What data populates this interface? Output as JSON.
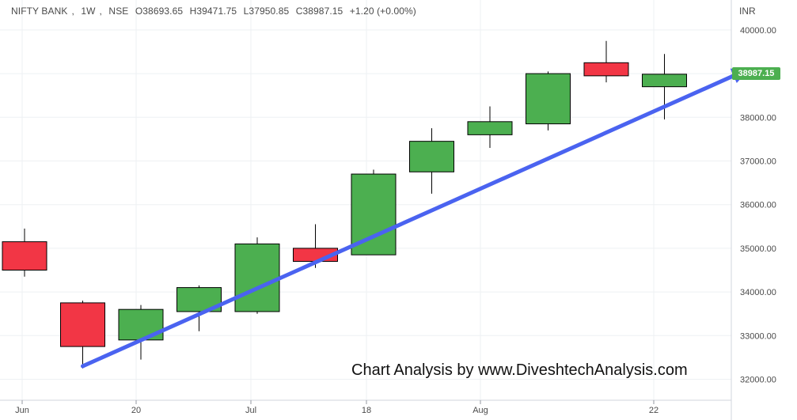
{
  "header": {
    "symbol": "NIFTY BANK",
    "interval": "1W",
    "exchange": "NSE",
    "open": "O38693.65",
    "high": "H39471.75",
    "low": "L37950.85",
    "close": "C38987.15",
    "change": "+1.20 (+0.00%)"
  },
  "currency": "INR",
  "last_price": "38987.15",
  "watermark": "Chart Analysis by www.DiveshtechAnalysis.com",
  "colors": {
    "up": "#4caf50",
    "down": "#f23645",
    "trendline": "#4a63f0",
    "grid": "#eef0f3",
    "axis_text": "#4a4a4a"
  },
  "chart_data": {
    "type": "candlestick",
    "y_axis": {
      "ticks": [
        32000,
        33000,
        34000,
        35000,
        36000,
        37000,
        38000,
        39000,
        40000
      ],
      "tick_labels": [
        "32000.00",
        "33000.00",
        "34000.00",
        "35000.00",
        "36000.00",
        "37000.00",
        "38000.00",
        "39000.00",
        "40000.00"
      ],
      "ylim": [
        31700,
        40500
      ],
      "position": "right"
    },
    "x_axis": {
      "tick_labels": [
        "Jun",
        "20",
        "Jul",
        "18",
        "Aug",
        "22"
      ]
    },
    "candles": [
      {
        "open": 35150,
        "high": 35450,
        "low": 34350,
        "close": 34500
      },
      {
        "open": 33750,
        "high": 33800,
        "low": 32250,
        "close": 32750
      },
      {
        "open": 32900,
        "high": 33700,
        "low": 32450,
        "close": 33600
      },
      {
        "open": 33550,
        "high": 34150,
        "low": 33100,
        "close": 34100
      },
      {
        "open": 33550,
        "high": 35250,
        "low": 33500,
        "close": 35100
      },
      {
        "open": 35000,
        "high": 35550,
        "low": 34550,
        "close": 34700
      },
      {
        "open": 34850,
        "high": 36800,
        "low": 34850,
        "close": 36700
      },
      {
        "open": 36750,
        "high": 37750,
        "low": 36250,
        "close": 37450
      },
      {
        "open": 37600,
        "high": 38250,
        "low": 37300,
        "close": 37900
      },
      {
        "open": 37850,
        "high": 39050,
        "low": 37700,
        "close": 39000
      },
      {
        "open": 39250,
        "high": 39750,
        "low": 38800,
        "close": 38950
      },
      {
        "open": 38700,
        "high": 39450,
        "low": 37950,
        "close": 38987.15
      }
    ],
    "trendline": {
      "start": [
        1,
        32300
      ],
      "end": [
        12.45,
        39100
      ]
    },
    "grid": true
  }
}
